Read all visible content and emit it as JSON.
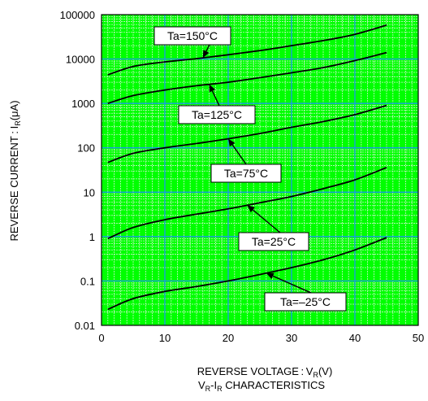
{
  "chart_data": {
    "type": "line",
    "x_scale": "linear",
    "y_scale": "log",
    "xlim": [
      0,
      50
    ],
    "ylim": [
      0.01,
      100000
    ],
    "x_ticks": [
      "0",
      "10",
      "20",
      "30",
      "40",
      "50"
    ],
    "y_ticks": [
      "0.01",
      "0.1",
      "1",
      "10",
      "100",
      "1000",
      "10000",
      "100000"
    ],
    "grid": true,
    "xlabel": {
      "main": "REVERSE VOLTAGE : V",
      "sub": "R",
      "unit": "(V)"
    },
    "ylabel": {
      "main": "REVERSE CURRENT : I",
      "sub": "R",
      "unit": "(μA)"
    },
    "caption": {
      "a": "V",
      "a_sub": "R",
      "mid": "-I",
      "b_sub": "R",
      "rest": " CHARACTERISTICS"
    },
    "colors": {
      "plot_bg": "#00ff00",
      "grid_major": "#1e90ff",
      "grid_minor": "#c8f5c8",
      "line": "#000000"
    },
    "series": [
      {
        "name": "Ta=150°C",
        "x": [
          1,
          5,
          10,
          15,
          20,
          25,
          30,
          35,
          40,
          45
        ],
        "values": [
          4400,
          6800,
          8600,
          10200,
          12500,
          15500,
          20000,
          26000,
          36000,
          58000
        ]
      },
      {
        "name": "Ta=125°C",
        "x": [
          1,
          5,
          10,
          15,
          20,
          25,
          30,
          35,
          40,
          45
        ],
        "values": [
          1000,
          1500,
          2000,
          2500,
          3000,
          3800,
          4900,
          6400,
          9200,
          14000
        ]
      },
      {
        "name": "Ta=75°C",
        "x": [
          1,
          5,
          10,
          15,
          20,
          25,
          30,
          35,
          40,
          45
        ],
        "values": [
          47,
          75,
          100,
          125,
          160,
          210,
          290,
          390,
          560,
          900
        ]
      },
      {
        "name": "Ta=25°C",
        "x": [
          1,
          5,
          10,
          15,
          20,
          25,
          30,
          35,
          40,
          45
        ],
        "values": [
          0.9,
          1.6,
          2.4,
          3.2,
          4.2,
          5.8,
          8,
          12,
          19,
          36
        ]
      },
      {
        "name": "Ta=–25°C",
        "x": [
          1,
          5,
          10,
          15,
          20,
          25,
          30,
          35,
          40,
          45
        ],
        "values": [
          0.023,
          0.04,
          0.058,
          0.075,
          0.1,
          0.14,
          0.2,
          0.3,
          0.5,
          0.95
        ]
      }
    ],
    "annotations": [
      {
        "text": "Ta=150°C",
        "series": 0,
        "x": 16
      },
      {
        "text": "Ta=125°C",
        "series": 1,
        "x": 17
      },
      {
        "text": "Ta=75°C",
        "series": 2,
        "x": 20
      },
      {
        "text": "Ta=25°C",
        "series": 3,
        "x": 23
      },
      {
        "text": "Ta=–25°C",
        "series": 4,
        "x": 26
      }
    ]
  }
}
